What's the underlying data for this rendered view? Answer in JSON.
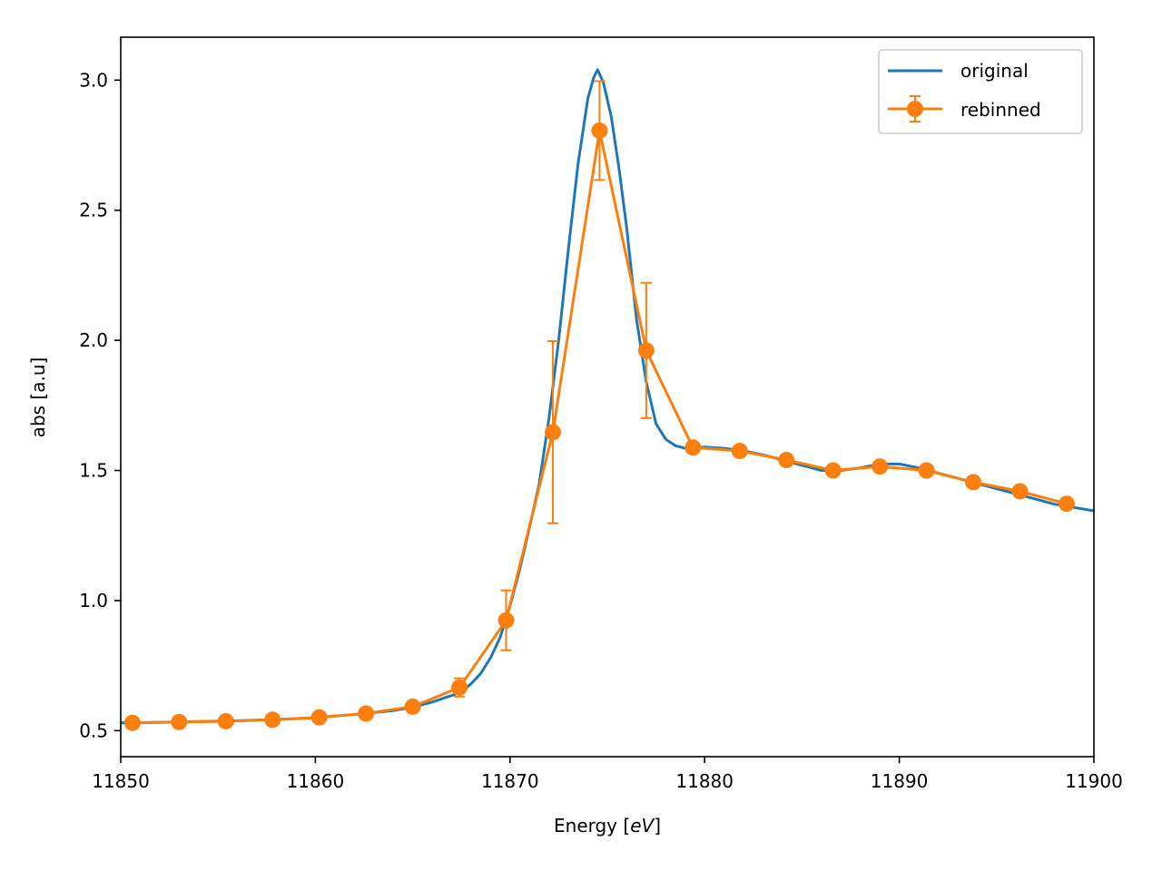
{
  "chart_data": {
    "type": "line",
    "xlabel_prefix": "Energy [",
    "xlabel_unit": "eV",
    "xlabel_suffix": "]",
    "ylabel": "abs [a.u]",
    "xlim": [
      11850,
      11900
    ],
    "ylim": [
      0.4,
      3.165
    ],
    "xticks": [
      11850,
      11860,
      11870,
      11880,
      11890,
      11900
    ],
    "yticks": [
      0.5,
      1.0,
      1.5,
      2.0,
      2.5,
      3.0
    ],
    "xtick_labels": [
      "11850",
      "11860",
      "11870",
      "11880",
      "11890",
      "11900"
    ],
    "ytick_labels": [
      "0.5",
      "1.0",
      "1.5",
      "2.0",
      "2.5",
      "3.0"
    ],
    "legend_position": "top-right",
    "grid": false,
    "series": [
      {
        "name": "original",
        "color": "#1f77b4",
        "style": "line",
        "x": [
          11850,
          11852,
          11854,
          11856,
          11858,
          11860,
          11862,
          11864,
          11865,
          11866,
          11867,
          11867.5,
          11868,
          11868.5,
          11869,
          11869.5,
          11870,
          11870.5,
          11871,
          11871.5,
          11872,
          11872.5,
          11873,
          11873.5,
          11874,
          11874.3,
          11874.5,
          11874.8,
          11875.2,
          11875.6,
          11876,
          11876.5,
          11877,
          11877.5,
          11878,
          11878.5,
          11879,
          11879.5,
          11880,
          11881,
          11882,
          11883,
          11884,
          11885,
          11886,
          11887,
          11888,
          11889,
          11890,
          11891,
          11892,
          11894,
          11896,
          11898,
          11900
        ],
        "y": [
          0.53,
          0.532,
          0.535,
          0.538,
          0.543,
          0.55,
          0.562,
          0.577,
          0.59,
          0.61,
          0.635,
          0.65,
          0.68,
          0.72,
          0.78,
          0.86,
          0.98,
          1.12,
          1.28,
          1.45,
          1.7,
          2.0,
          2.35,
          2.68,
          2.93,
          3.01,
          3.04,
          2.99,
          2.86,
          2.66,
          2.43,
          2.08,
          1.84,
          1.68,
          1.62,
          1.595,
          1.585,
          1.585,
          1.59,
          1.585,
          1.575,
          1.56,
          1.54,
          1.52,
          1.5,
          1.5,
          1.51,
          1.525,
          1.525,
          1.51,
          1.49,
          1.45,
          1.41,
          1.37,
          1.345
        ]
      },
      {
        "name": "rebinned",
        "color": "#ff7f0e",
        "style": "line-marker-errorbar",
        "x": [
          11850.6,
          11853.0,
          11855.4,
          11857.8,
          11860.2,
          11862.6,
          11865.0,
          11867.4,
          11869.8,
          11872.2,
          11874.6,
          11877.0,
          11879.4,
          11881.8,
          11884.2,
          11886.6,
          11889.0,
          11891.4,
          11893.8,
          11896.2,
          11898.6
        ],
        "y": [
          0.53,
          0.533,
          0.536,
          0.542,
          0.551,
          0.566,
          0.592,
          0.666,
          0.924,
          1.647,
          2.806,
          1.961,
          1.588,
          1.575,
          1.54,
          1.5,
          1.515,
          1.5,
          1.455,
          1.42,
          1.372
        ],
        "err": [
          0.005,
          0.005,
          0.005,
          0.005,
          0.005,
          0.005,
          0.01,
          0.035,
          0.115,
          0.35,
          0.19,
          0.26,
          0.01,
          0.005,
          0.005,
          0.005,
          0.005,
          0.005,
          0.005,
          0.005,
          0.005
        ]
      }
    ]
  }
}
